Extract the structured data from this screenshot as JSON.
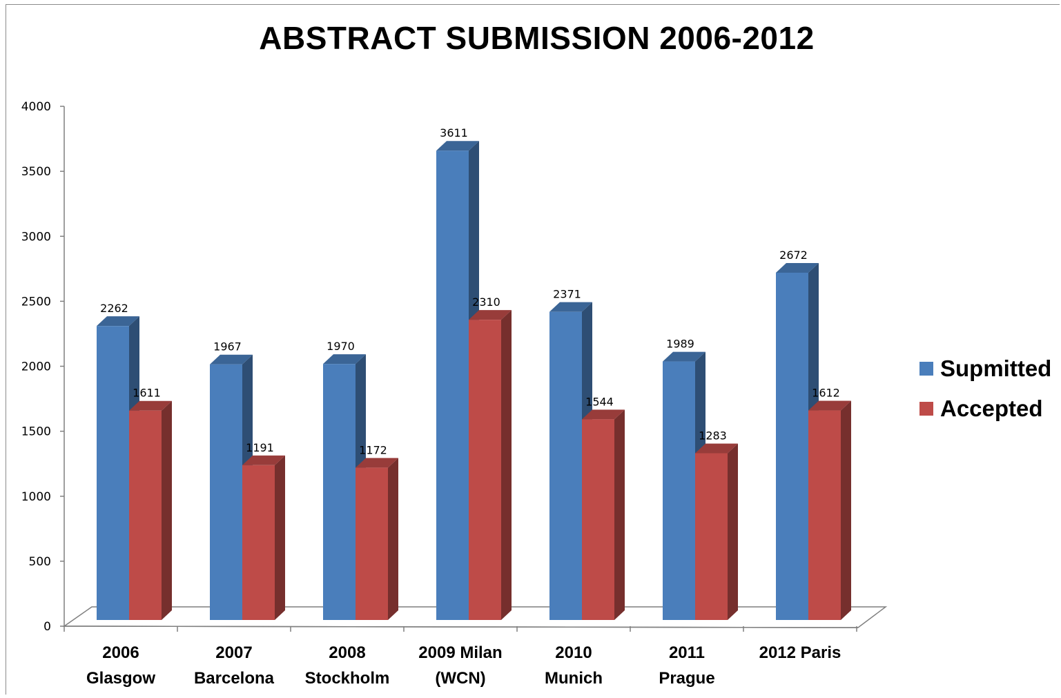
{
  "chart_data": {
    "type": "bar",
    "title": "ABSTRACT SUBMISSION 2006-2012",
    "categories": [
      [
        "2006",
        "Glasgow"
      ],
      [
        "2007",
        "Barcelona"
      ],
      [
        "2008",
        "Stockholm"
      ],
      [
        "2009 Milan",
        "(WCN)"
      ],
      [
        "2010",
        "Munich"
      ],
      [
        "2011",
        "Prague"
      ],
      [
        "2012 Paris"
      ]
    ],
    "series": [
      {
        "name": "Supmitted",
        "values": [
          2262,
          1967,
          1970,
          3611,
          2371,
          1989,
          2672
        ],
        "labels": [
          "2262",
          "1967",
          "1970",
          "3611",
          "2371",
          "1989",
          "2672"
        ],
        "color": "#4a7ebb"
      },
      {
        "name": "Accepted",
        "values": [
          1611,
          1191,
          1172,
          2310,
          1544,
          1283,
          1612
        ],
        "labels": [
          "1611",
          "1191",
          "1172",
          "2310",
          "1544",
          "1283",
          "1612"
        ],
        "color": "#be4b48"
      }
    ],
    "ylim": [
      0,
      4000
    ],
    "yticks": [
      0,
      500,
      1000,
      1500,
      2000,
      2500,
      3000,
      3500,
      4000
    ],
    "xlabel": "",
    "ylabel": "",
    "grid": false,
    "legend_position": "right",
    "style": "3d-clustered-column"
  }
}
